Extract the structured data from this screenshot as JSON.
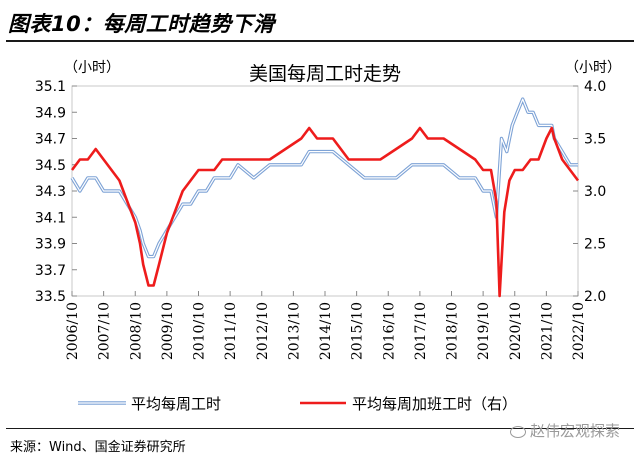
{
  "figure": {
    "title": "图表10：每周工时趋势下滑",
    "source": "来源：Wind、国金证券研究所",
    "watermark": "赵伟宏观探索"
  },
  "chart_data": {
    "type": "line",
    "title": "美国每周工时走势",
    "left_unit": "（小时）",
    "right_unit": "（小时）",
    "x_tick_labels": [
      "2006/10",
      "2007/10",
      "2008/10",
      "2009/10",
      "2010/10",
      "2011/10",
      "2012/10",
      "2013/10",
      "2014/10",
      "2015/10",
      "2016/10",
      "2017/10",
      "2018/10",
      "2019/10",
      "2020/10",
      "2021/10",
      "2022/10"
    ],
    "xlim": [
      2006.75,
      2022.75
    ],
    "y_left": {
      "ylim": [
        33.5,
        35.1
      ],
      "ticks": [
        "33.5",
        "33.7",
        "33.9",
        "34.1",
        "34.3",
        "34.5",
        "34.7",
        "34.9",
        "35.1"
      ]
    },
    "y_right": {
      "ylim": [
        2.0,
        4.0
      ],
      "ticks": [
        "2.0",
        "2.5",
        "3.0",
        "3.5",
        "4.0"
      ]
    },
    "legend_position": "bottom",
    "series": [
      {
        "name": "平均每周工时",
        "axis": "left",
        "color": "#7ea3d6",
        "points": [
          [
            2006.75,
            34.4
          ],
          [
            2007.0,
            34.3
          ],
          [
            2007.25,
            34.4
          ],
          [
            2007.5,
            34.4
          ],
          [
            2007.75,
            34.3
          ],
          [
            2008.0,
            34.3
          ],
          [
            2008.25,
            34.3
          ],
          [
            2008.5,
            34.2
          ],
          [
            2008.75,
            34.1
          ],
          [
            2008.9,
            34.0
          ],
          [
            2009.0,
            33.9
          ],
          [
            2009.17,
            33.8
          ],
          [
            2009.33,
            33.8
          ],
          [
            2009.5,
            33.9
          ],
          [
            2009.75,
            34.0
          ],
          [
            2010.0,
            34.1
          ],
          [
            2010.25,
            34.2
          ],
          [
            2010.5,
            34.2
          ],
          [
            2010.75,
            34.3
          ],
          [
            2011.0,
            34.3
          ],
          [
            2011.25,
            34.4
          ],
          [
            2011.5,
            34.4
          ],
          [
            2011.75,
            34.4
          ],
          [
            2012.0,
            34.5
          ],
          [
            2012.5,
            34.4
          ],
          [
            2013.0,
            34.5
          ],
          [
            2013.5,
            34.5
          ],
          [
            2014.0,
            34.5
          ],
          [
            2014.25,
            34.6
          ],
          [
            2014.5,
            34.6
          ],
          [
            2014.75,
            34.6
          ],
          [
            2015.0,
            34.6
          ],
          [
            2015.5,
            34.5
          ],
          [
            2016.0,
            34.4
          ],
          [
            2016.5,
            34.4
          ],
          [
            2017.0,
            34.4
          ],
          [
            2017.5,
            34.5
          ],
          [
            2017.75,
            34.5
          ],
          [
            2018.0,
            34.5
          ],
          [
            2018.5,
            34.5
          ],
          [
            2019.0,
            34.4
          ],
          [
            2019.5,
            34.4
          ],
          [
            2019.75,
            34.3
          ],
          [
            2020.0,
            34.3
          ],
          [
            2020.17,
            34.1
          ],
          [
            2020.33,
            34.7
          ],
          [
            2020.5,
            34.6
          ],
          [
            2020.67,
            34.8
          ],
          [
            2020.83,
            34.9
          ],
          [
            2021.0,
            35.0
          ],
          [
            2021.17,
            34.9
          ],
          [
            2021.33,
            34.9
          ],
          [
            2021.5,
            34.8
          ],
          [
            2021.75,
            34.8
          ],
          [
            2021.92,
            34.8
          ],
          [
            2022.0,
            34.7
          ],
          [
            2022.25,
            34.6
          ],
          [
            2022.5,
            34.5
          ],
          [
            2022.75,
            34.5
          ]
        ]
      },
      {
        "name": "平均每周加班工时（右）",
        "axis": "right",
        "color": "#ee1c1c",
        "points": [
          [
            2006.75,
            3.2
          ],
          [
            2007.0,
            3.3
          ],
          [
            2007.25,
            3.3
          ],
          [
            2007.5,
            3.4
          ],
          [
            2007.75,
            3.3
          ],
          [
            2008.0,
            3.2
          ],
          [
            2008.25,
            3.1
          ],
          [
            2008.5,
            2.9
          ],
          [
            2008.75,
            2.7
          ],
          [
            2008.9,
            2.5
          ],
          [
            2009.0,
            2.3
          ],
          [
            2009.17,
            2.1
          ],
          [
            2009.33,
            2.1
          ],
          [
            2009.5,
            2.3
          ],
          [
            2009.75,
            2.6
          ],
          [
            2010.0,
            2.8
          ],
          [
            2010.25,
            3.0
          ],
          [
            2010.5,
            3.1
          ],
          [
            2010.75,
            3.2
          ],
          [
            2011.0,
            3.2
          ],
          [
            2011.25,
            3.2
          ],
          [
            2011.5,
            3.3
          ],
          [
            2011.75,
            3.3
          ],
          [
            2012.0,
            3.3
          ],
          [
            2012.5,
            3.3
          ],
          [
            2013.0,
            3.3
          ],
          [
            2013.5,
            3.4
          ],
          [
            2014.0,
            3.5
          ],
          [
            2014.25,
            3.6
          ],
          [
            2014.5,
            3.5
          ],
          [
            2014.75,
            3.5
          ],
          [
            2015.0,
            3.5
          ],
          [
            2015.5,
            3.3
          ],
          [
            2016.0,
            3.3
          ],
          [
            2016.5,
            3.3
          ],
          [
            2017.0,
            3.4
          ],
          [
            2017.5,
            3.5
          ],
          [
            2017.75,
            3.6
          ],
          [
            2018.0,
            3.5
          ],
          [
            2018.5,
            3.5
          ],
          [
            2019.0,
            3.4
          ],
          [
            2019.5,
            3.3
          ],
          [
            2019.75,
            3.2
          ],
          [
            2020.0,
            3.2
          ],
          [
            2020.17,
            2.9
          ],
          [
            2020.27,
            2.0
          ],
          [
            2020.42,
            2.8
          ],
          [
            2020.58,
            3.1
          ],
          [
            2020.75,
            3.2
          ],
          [
            2021.0,
            3.2
          ],
          [
            2021.25,
            3.3
          ],
          [
            2021.5,
            3.3
          ],
          [
            2021.75,
            3.5
          ],
          [
            2021.92,
            3.6
          ],
          [
            2022.0,
            3.5
          ],
          [
            2022.25,
            3.3
          ],
          [
            2022.5,
            3.2
          ],
          [
            2022.75,
            3.1
          ]
        ]
      }
    ]
  }
}
